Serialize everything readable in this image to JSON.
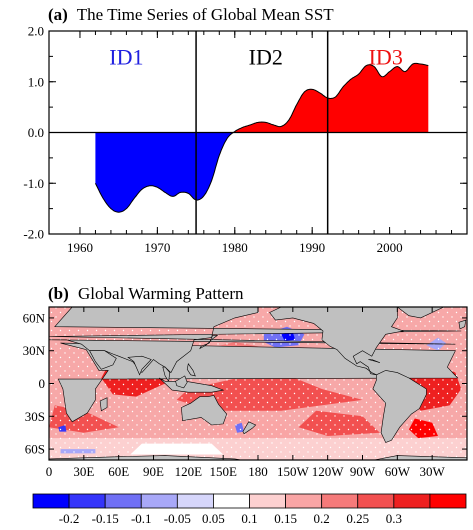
{
  "panel_a": {
    "label": "(a)",
    "title": "The Time Series of Global Mean SST"
  },
  "panel_b": {
    "label": "(b)",
    "title": "Global Warming Pattern"
  },
  "chart_data": [
    {
      "type": "area",
      "title": "The Time Series of Global Mean SST",
      "xlim": [
        1956,
        2010
      ],
      "ylim": [
        -2.0,
        2.0
      ],
      "x_ticks": [
        1960,
        1970,
        1980,
        1990,
        2000
      ],
      "y_ticks": [
        2.0,
        1.0,
        0.0,
        -1.0,
        -2.0
      ],
      "y_tick_labels": [
        "2.0",
        "1.0",
        "0.0",
        "-1.0",
        "-2.0"
      ],
      "x": [
        1962,
        1963,
        1964,
        1965,
        1966,
        1967,
        1968,
        1969,
        1970,
        1971,
        1972,
        1973,
        1974,
        1975,
        1976,
        1977,
        1978,
        1979,
        1980,
        1981,
        1982,
        1983,
        1984,
        1985,
        1986,
        1987,
        1988,
        1989,
        1990,
        1991,
        1992,
        1993,
        1994,
        1995,
        1996,
        1997,
        1998,
        1999,
        2000,
        2001,
        2002,
        2003,
        2004,
        2005
      ],
      "y": [
        -1.0,
        -1.3,
        -1.5,
        -1.57,
        -1.5,
        -1.3,
        -1.12,
        -1.05,
        -1.08,
        -1.18,
        -1.26,
        -1.18,
        -1.2,
        -1.33,
        -1.25,
        -0.95,
        -0.45,
        -0.12,
        0.02,
        0.1,
        0.15,
        0.2,
        0.2,
        0.15,
        0.12,
        0.25,
        0.55,
        0.8,
        0.85,
        0.78,
        0.68,
        0.7,
        0.9,
        1.05,
        1.15,
        1.32,
        1.3,
        1.1,
        1.2,
        1.3,
        1.2,
        1.35,
        1.35,
        1.32
      ],
      "positive_color": "#ff0000",
      "negative_color": "#0000ff",
      "vertical_lines": [
        1975,
        1992
      ],
      "period_labels": [
        {
          "text": "ID1",
          "color": "#2020e0",
          "x": 1966,
          "y": 1.5
        },
        {
          "text": "ID2",
          "color": "#000000",
          "x": 1984,
          "y": 1.5
        },
        {
          "text": "ID3",
          "color": "#ee1010",
          "x": 1999.5,
          "y": 1.5
        }
      ]
    },
    {
      "type": "heatmap",
      "title": "Global Warming Pattern",
      "x_tick_labels": [
        "0",
        "30E",
        "60E",
        "90E",
        "120E",
        "150E",
        "180",
        "150W",
        "120W",
        "90W",
        "60W",
        "30W"
      ],
      "y_tick_labels": [
        "60N",
        "30N",
        "0",
        "30S",
        "60S"
      ],
      "colorbar": {
        "labels": [
          "-0.2",
          "-0.15",
          "-0.1",
          "-0.05",
          "0.05",
          "0.1",
          "0.15",
          "0.2",
          "0.25",
          "0.3"
        ],
        "colors": [
          "#0000ff",
          "#3535fa",
          "#7070f5",
          "#a8a8f8",
          "#d6d6fb",
          "#ffffff",
          "#fcd0d0",
          "#f9a5a5",
          "#f57a7a",
          "#f25050",
          "#ee2020",
          "#ff0000"
        ]
      },
      "land_color": "#c0c0c0",
      "ocean_base_color": "#f7a8a8"
    }
  ]
}
